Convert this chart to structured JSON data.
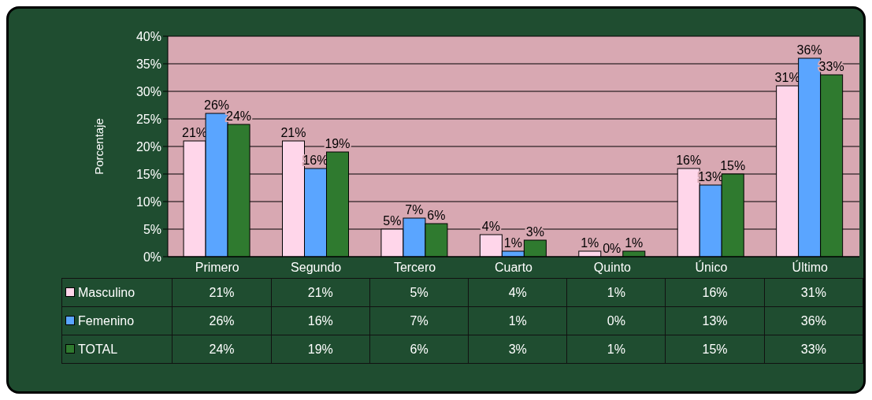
{
  "chart_data": {
    "type": "bar",
    "ylabel": "Porcentaje",
    "categories": [
      "Primero",
      "Segundo",
      "Tercero",
      "Cuarto",
      "Quinto",
      "Único",
      "Último"
    ],
    "series": [
      {
        "name": "Masculino",
        "color": "#ffd6ea",
        "values": [
          21,
          21,
          5,
          4,
          1,
          16,
          31
        ],
        "value_labels": [
          "21%",
          "21%",
          "5%",
          "4%",
          "1%",
          "16%",
          "31%"
        ]
      },
      {
        "name": "Femenino",
        "color": "#5aa5ff",
        "values": [
          26,
          16,
          7,
          1,
          0,
          13,
          36
        ],
        "value_labels": [
          "26%",
          "16%",
          "7%",
          "1%",
          "0%",
          "13%",
          "36%"
        ]
      },
      {
        "name": "TOTAL",
        "color": "#2f7a2f",
        "values": [
          24,
          19,
          6,
          3,
          1,
          15,
          33
        ],
        "value_labels": [
          "24%",
          "19%",
          "6%",
          "3%",
          "1%",
          "15%",
          "33%"
        ]
      }
    ],
    "ylim": [
      0,
      40
    ],
    "yticks": [
      {
        "value": 0,
        "label": "0%"
      },
      {
        "value": 5,
        "label": "5%"
      },
      {
        "value": 10,
        "label": "10%"
      },
      {
        "value": 15,
        "label": "15%"
      },
      {
        "value": 20,
        "label": "20%"
      },
      {
        "value": 25,
        "label": "25%"
      },
      {
        "value": 30,
        "label": "30%"
      },
      {
        "value": 35,
        "label": "35%"
      },
      {
        "value": 40,
        "label": "40%"
      }
    ],
    "grid": "y",
    "legend": "bottom left"
  }
}
